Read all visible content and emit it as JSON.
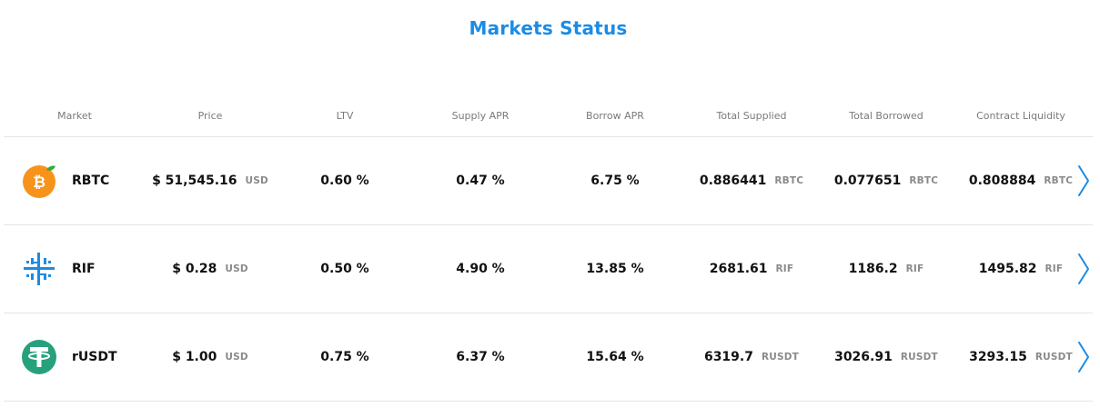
{
  "title": "Markets Status",
  "columns": [
    "Market",
    "Price",
    "LTV",
    "Supply APR",
    "Borrow APR",
    "Total Supplied",
    "Total Borrowed",
    "Contract Liquidity"
  ],
  "accent": "#1b8ce5",
  "markets": [
    {
      "name": "RBTC",
      "icon": "rbtc-icon",
      "price": "$ 51,545.16",
      "price_unit": "USD",
      "ltv": "0.60 %",
      "supply_apr": "0.47 %",
      "borrow_apr": "6.75 %",
      "total_supplied": "0.886441",
      "total_supplied_unit": "RBTC",
      "total_borrowed": "0.077651",
      "total_borrowed_unit": "RBTC",
      "liquidity": "0.808884",
      "liquidity_unit": "RBTC"
    },
    {
      "name": "RIF",
      "icon": "rif-icon",
      "price": "$ 0.28",
      "price_unit": "USD",
      "ltv": "0.50 %",
      "supply_apr": "4.90 %",
      "borrow_apr": "13.85 %",
      "total_supplied": "2681.61",
      "total_supplied_unit": "RIF",
      "total_borrowed": "1186.2",
      "total_borrowed_unit": "RIF",
      "liquidity": "1495.82",
      "liquidity_unit": "RIF"
    },
    {
      "name": "rUSDT",
      "icon": "tether-icon",
      "price": "$ 1.00",
      "price_unit": "USD",
      "ltv": "0.75 %",
      "supply_apr": "6.37 %",
      "borrow_apr": "15.64 %",
      "total_supplied": "6319.7",
      "total_supplied_unit": "RUSDT",
      "total_borrowed": "3026.91",
      "total_borrowed_unit": "RUSDT",
      "liquidity": "3293.15",
      "liquidity_unit": "RUSDT"
    }
  ]
}
